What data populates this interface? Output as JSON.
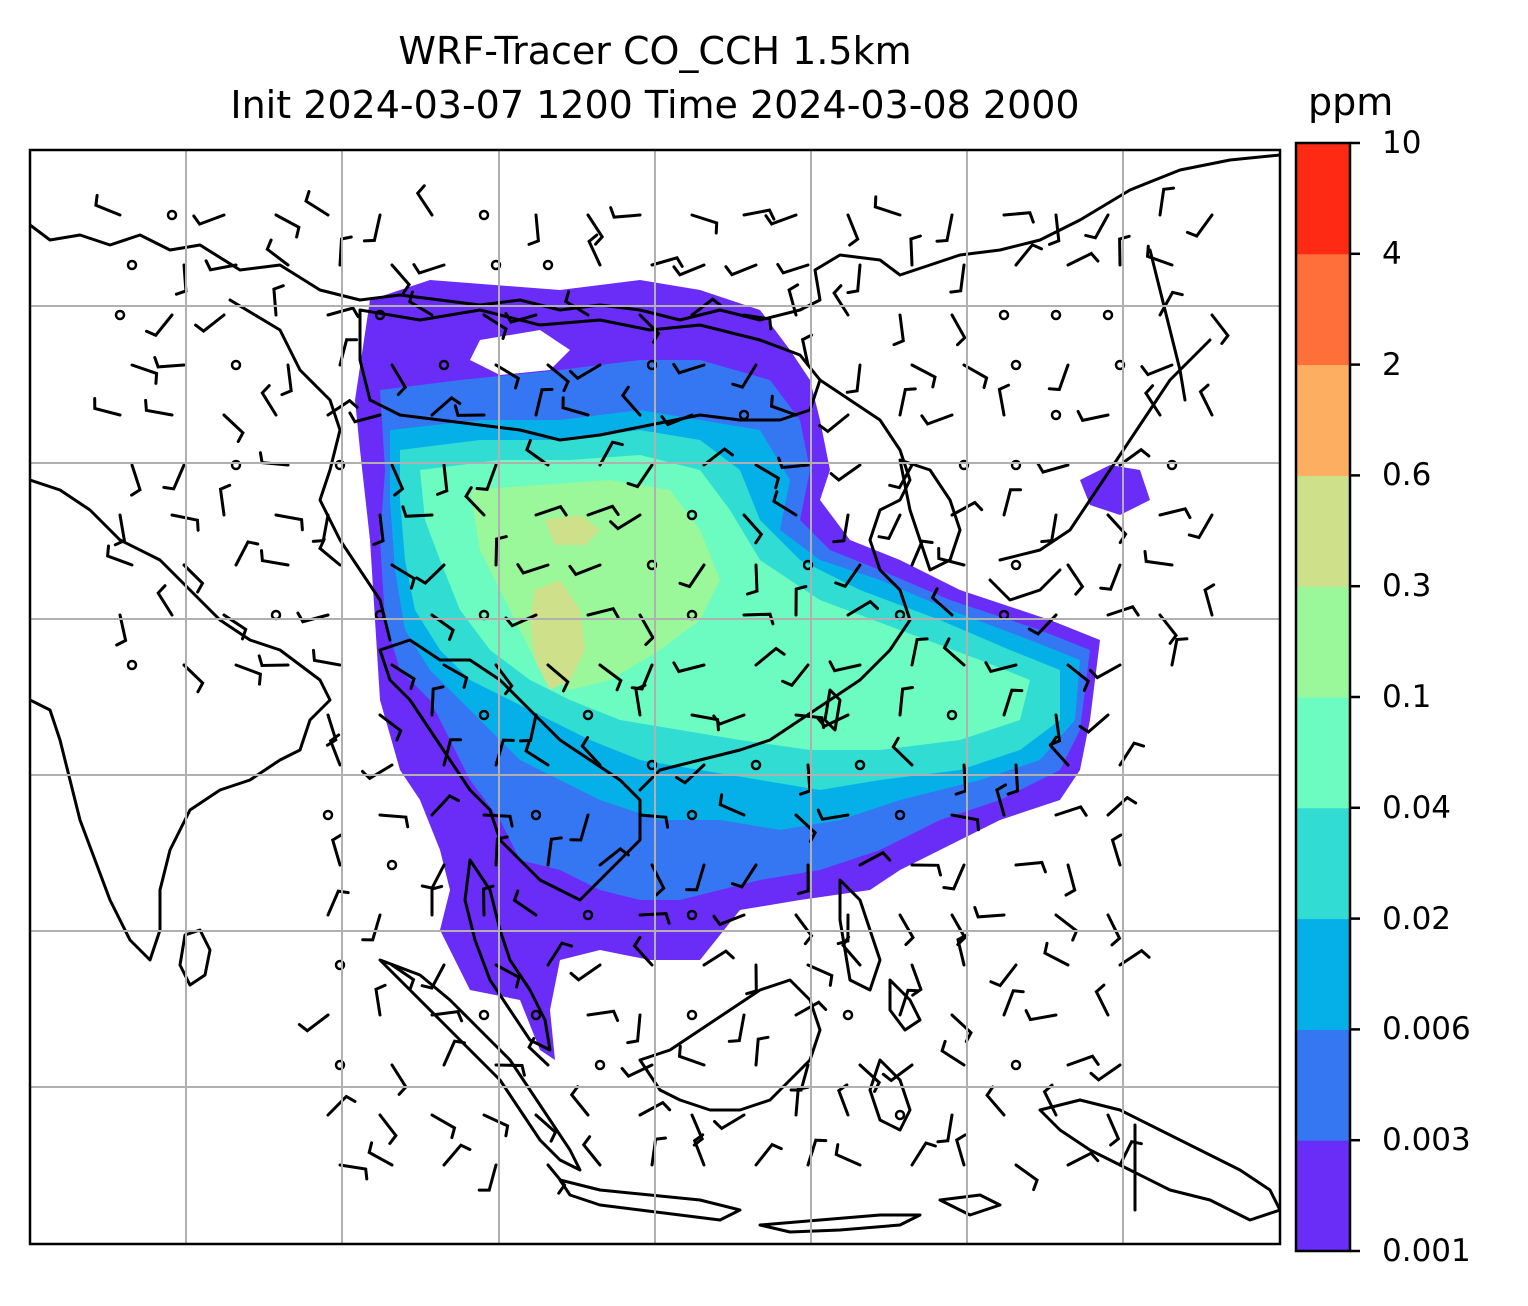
{
  "title": {
    "line1": "WRF-Tracer CO_CCH 1.5km",
    "line2": "Init 2024-03-07 1200 Time 2024-03-08 2000"
  },
  "colorbar": {
    "unit": "ppm",
    "levels": [
      "0.001",
      "0.003",
      "0.006",
      "0.02",
      "0.04",
      "0.1",
      "0.3",
      "0.6",
      "2",
      "4",
      "10"
    ],
    "colors": [
      "#6a2cf7",
      "#3576f2",
      "#05b0e8",
      "#31dcd2",
      "#6cfbc0",
      "#9bf89a",
      "#cfe08a",
      "#fdae61",
      "#fe6f3a",
      "#fe2a14"
    ]
  },
  "map": {
    "gridlines": "on",
    "coastlines": "on",
    "wind_barbs": "on"
  }
}
